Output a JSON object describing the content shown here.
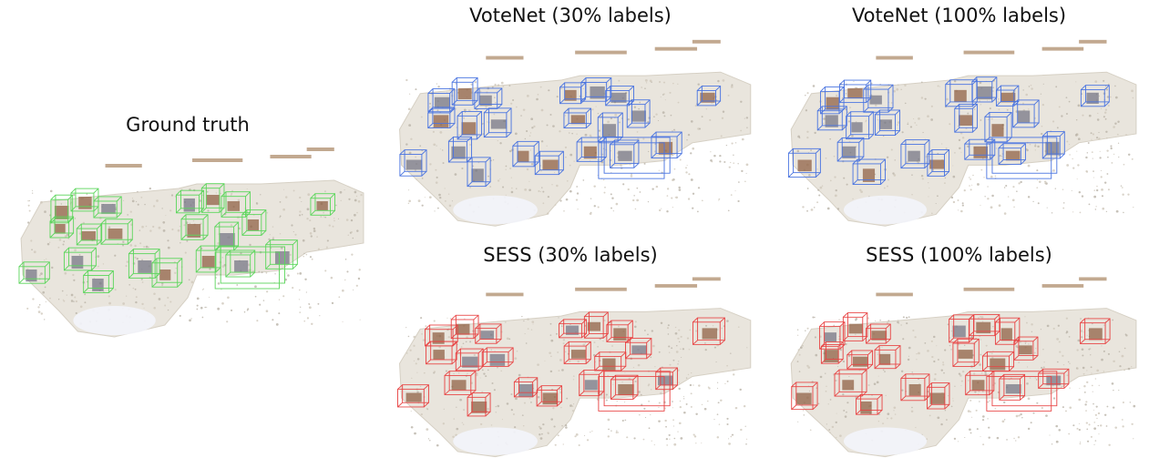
{
  "panels": [
    {
      "id": "gt",
      "title": "Ground truth",
      "box_color": "#5cd65c"
    },
    {
      "id": "vn30",
      "title": "VoteNet (30% labels)",
      "box_color": "#4a74e0"
    },
    {
      "id": "vn100",
      "title": "VoteNet (100% labels)",
      "box_color": "#4a74e0"
    },
    {
      "id": "sess30",
      "title": "SESS (30% labels)",
      "box_color": "#e84444"
    },
    {
      "id": "sess100",
      "title": "SESS (100% labels)",
      "box_color": "#e84444"
    }
  ]
}
